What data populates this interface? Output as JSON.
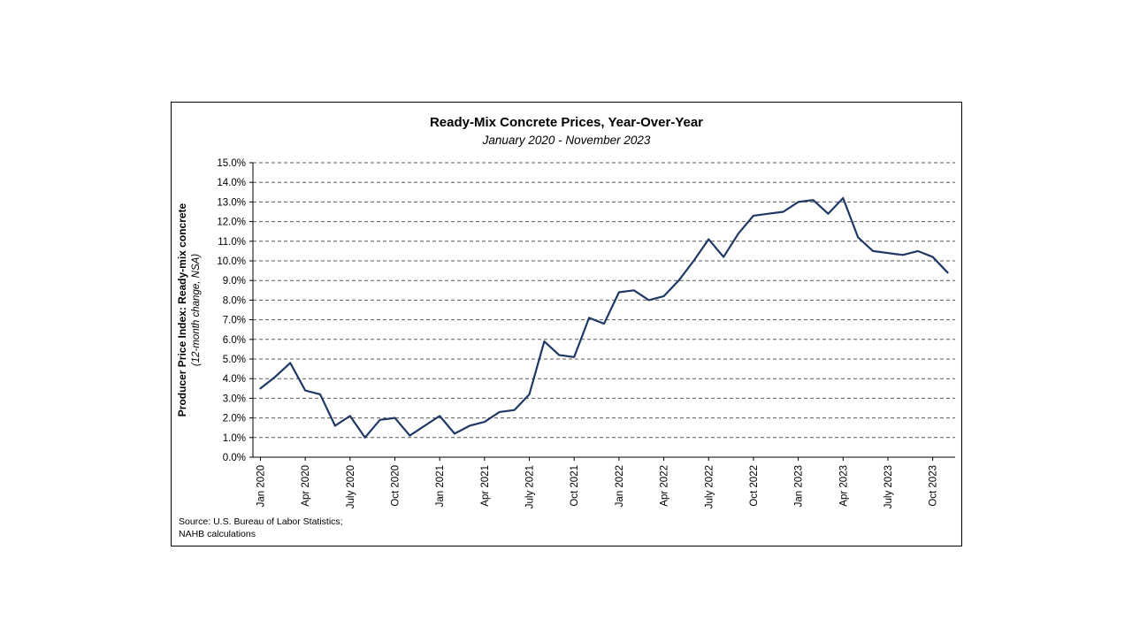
{
  "window": {
    "background": "#ffffff"
  },
  "chart": {
    "title": "Ready-Mix Concrete Prices, Year-Over-Year",
    "subtitle": "January 2020 - November 2023",
    "y_axis_title": "Producer Price Index: Ready-mix concrete",
    "y_axis_subtitle": "(12-month change, NSA)",
    "source_line1": "Source: U.S. Bureau of Labor Statistics;",
    "source_line2": "NAHB calculations",
    "line_color": "#1f3864",
    "gridline_color": "#595959",
    "axis_color": "#000000",
    "frame_border_color": "#000000"
  },
  "chart_data": {
    "type": "line",
    "title": "Ready-Mix Concrete Prices, Year-Over-Year",
    "subtitle": "January 2020 - November 2023",
    "ylabel": "Producer Price Index: Ready-mix concrete (12-month change, NSA)",
    "xlabel": "",
    "ylim": [
      0,
      15
    ],
    "y_tick_step": 1,
    "y_tick_suffix": "%",
    "y_tick_labels": [
      "0.0%",
      "1.0%",
      "2.0%",
      "3.0%",
      "4.0%",
      "5.0%",
      "6.0%",
      "7.0%",
      "8.0%",
      "9.0%",
      "10.0%",
      "11.0%",
      "12.0%",
      "13.0%",
      "14.0%",
      "15.0%"
    ],
    "grid": "horizontal-dashed",
    "legend": "none",
    "x": [
      "Jan 2020",
      "Feb 2020",
      "Mar 2020",
      "Apr 2020",
      "May 2020",
      "Jun 2020",
      "Jul 2020",
      "Aug 2020",
      "Sep 2020",
      "Oct 2020",
      "Nov 2020",
      "Dec 2020",
      "Jan 2021",
      "Feb 2021",
      "Mar 2021",
      "Apr 2021",
      "May 2021",
      "Jun 2021",
      "Jul 2021",
      "Aug 2021",
      "Sep 2021",
      "Oct 2021",
      "Nov 2021",
      "Dec 2021",
      "Jan 2022",
      "Feb 2022",
      "Mar 2022",
      "Apr 2022",
      "May 2022",
      "Jun 2022",
      "Jul 2022",
      "Aug 2022",
      "Sep 2022",
      "Oct 2022",
      "Nov 2022",
      "Dec 2022",
      "Jan 2023",
      "Feb 2023",
      "Mar 2023",
      "Apr 2023",
      "May 2023",
      "Jun 2023",
      "Jul 2023",
      "Aug 2023",
      "Sep 2023",
      "Oct 2023",
      "Nov 2023"
    ],
    "values": [
      3.5,
      4.1,
      4.8,
      3.4,
      3.2,
      1.6,
      2.1,
      1.0,
      1.9,
      2.0,
      1.1,
      1.6,
      2.1,
      1.2,
      1.6,
      1.8,
      2.3,
      2.4,
      3.2,
      5.9,
      5.2,
      5.1,
      7.1,
      6.8,
      8.4,
      8.5,
      8.0,
      8.2,
      9.0,
      10.0,
      11.1,
      10.2,
      11.4,
      12.3,
      12.4,
      12.5,
      13.0,
      13.1,
      12.4,
      13.2,
      11.2,
      10.5,
      10.4,
      10.3,
      10.5,
      10.2,
      9.4
    ],
    "x_tick_every": 3,
    "x_tick_labels": [
      "Jan 2020",
      "Apr 2020",
      "July 2020",
      "Oct 2020",
      "Jan 2021",
      "Apr 2021",
      "July 2021",
      "Oct 2021",
      "Jan 2022",
      "Apr 2022",
      "July 2022",
      "Oct 2022",
      "Jan 2023",
      "Apr 2023",
      "July 2023",
      "Oct 2023"
    ]
  }
}
